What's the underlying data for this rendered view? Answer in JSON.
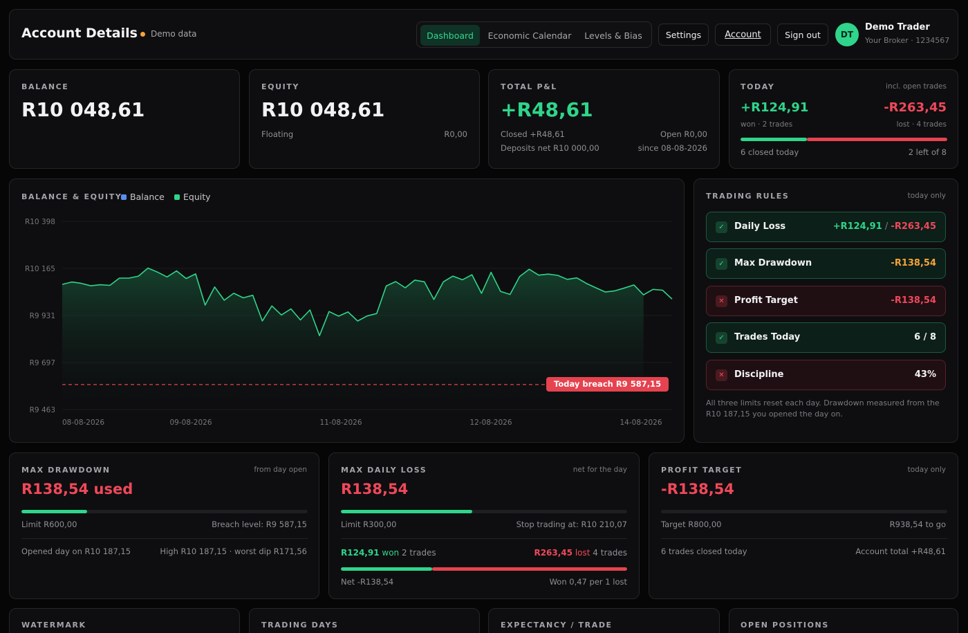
{
  "header": {
    "title": "Account Details",
    "demo_label": "Demo data",
    "tabs": [
      "Dashboard",
      "Economic Calendar",
      "Levels & Bias"
    ],
    "settings": "Settings",
    "account": "Account",
    "signout": "Sign out",
    "avatar": "DT",
    "user_name": "Demo Trader",
    "user_sub": "Your Broker · 1234567"
  },
  "stats": {
    "balance": {
      "label": "Balance",
      "value": "R10 048,61"
    },
    "equity": {
      "label": "Equity",
      "value": "R10 048,61",
      "floating_label": "Floating",
      "floating_value": "R0,00"
    },
    "pnl": {
      "label": "Total P&L",
      "value": "+R48,61",
      "closed": "Closed +R48,61",
      "open": "Open R0,00",
      "deposits": "Deposits net R10 000,00",
      "since": "since 08-08-2026"
    },
    "today": {
      "label": "Today",
      "note": "incl. open trades",
      "won": "+R124,91",
      "won_sub": "won · 2 trades",
      "lost": "-R263,45",
      "lost_sub": "lost · 4 trades",
      "won_fraction": 0.32,
      "closed": "6 closed today",
      "left": "2 left of 8"
    }
  },
  "chart": {
    "label": "Balance & Equity",
    "breach_tag": "Today breach R9 587,15"
  },
  "chart_data": {
    "type": "area",
    "title": "BALANCE & EQUITY",
    "series": [
      {
        "name": "Balance",
        "color": "#5b8def",
        "values": []
      },
      {
        "name": "Equity",
        "color": "#2fd58a",
        "values": [
          10085,
          10097,
          10090,
          10078,
          10083,
          10080,
          10116,
          10116,
          10126,
          10166,
          10146,
          10122,
          10152,
          10114,
          10137,
          9982,
          10072,
          10006,
          10041,
          10018,
          10031,
          9903,
          9978,
          9933,
          9963,
          9908,
          9958,
          9830,
          9950,
          9927,
          9948,
          9903,
          9928,
          9940,
          10077,
          10099,
          10068,
          10106,
          10098,
          10010,
          10098,
          10126,
          10108,
          10133,
          10040,
          10145,
          10050,
          10035,
          10124,
          10160,
          10131,
          10136,
          10130,
          10110,
          10117,
          10090,
          10068,
          10047,
          10053,
          10067,
          10082,
          10033,
          10060,
          10056,
          10012
        ]
      }
    ],
    "x_ticks": [
      "08-08-2026",
      "09-08-2026",
      "11-08-2026",
      "12-08-2026",
      "14-08-2026"
    ],
    "y_ticks": [
      "R10 398",
      "R10 165",
      "R9 931",
      "R9 697",
      "R9 463"
    ],
    "ylim": [
      9463,
      10398
    ],
    "breach_level": 9587.15,
    "grid": true,
    "legend": "top-left"
  },
  "rules": {
    "label": "Trading Rules",
    "note": "today only",
    "items": [
      {
        "name": "Daily Loss",
        "status": "ok",
        "val_a": "+R124,91",
        "sep": " / ",
        "val_b": "-R263,45"
      },
      {
        "name": "Max Drawdown",
        "status": "ok",
        "value": "-R138,54"
      },
      {
        "name": "Profit Target",
        "status": "bad",
        "value": "-R138,54"
      },
      {
        "name": "Trades Today",
        "status": "ok",
        "value": "6 / 8"
      },
      {
        "name": "Discipline",
        "status": "bad",
        "value": "43%"
      }
    ],
    "footnote_1": "All three limits reset each day. Drawdown measured from the",
    "footnote_2": "R10 187,15 you opened the day on."
  },
  "mdd": {
    "label": "Max Drawdown",
    "note": "from day open",
    "value": "R138,54 used",
    "progress": 0.23,
    "limit": "Limit R600,00",
    "breach": "Breach level: R9 587,15",
    "opened": "Opened day on R10 187,15",
    "high": "High R10 187,15 · worst dip R171,56"
  },
  "mdl": {
    "label": "Max Daily Loss",
    "note": "net for the day",
    "value": "R138,54",
    "progress": 0.46,
    "limit": "Limit R300,00",
    "stop": "Stop trading at: R10 210,07",
    "won_amt": "R124,91",
    "won_word": "won",
    "won_trades": "2 trades",
    "lost_amt": "R263,45",
    "lost_word": "lost",
    "lost_trades": "4 trades",
    "won_fraction": 0.32,
    "net": "Net -R138,54",
    "ratio": "Won 0,47 per 1 lost"
  },
  "pt": {
    "label": "Profit Target",
    "note": "today only",
    "value": "-R138,54",
    "progress": 0,
    "target": "Target R800,00",
    "togo": "R938,54 to go",
    "closed": "6 trades closed today",
    "total": "Account total +R48,61"
  },
  "bottom": {
    "watermark": "Watermark",
    "trading_days": "Trading Days",
    "expectancy": "Expectancy / Trade",
    "open_positions": "Open Positions"
  }
}
